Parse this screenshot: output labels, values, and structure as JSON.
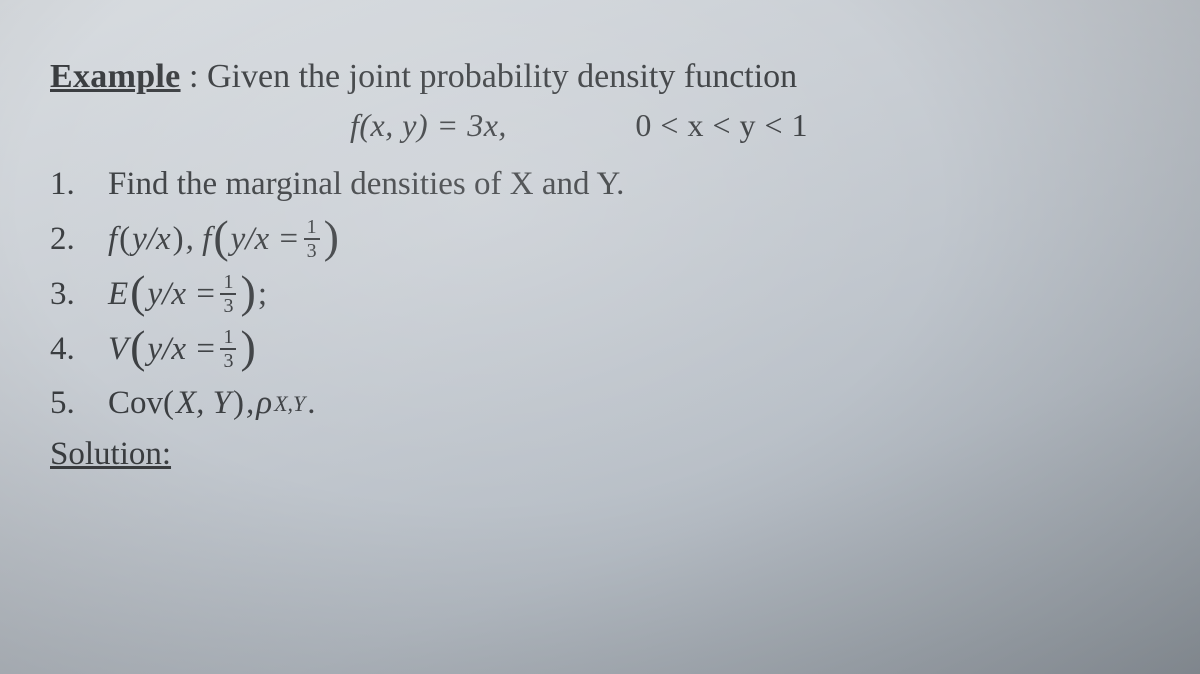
{
  "colors": {
    "text": "#3a3d40",
    "bg_top": "#d8dce0",
    "bg_bottom": "#9ba3ab"
  },
  "typography": {
    "family": "Georgia / Times serif",
    "base_size_pt": 24,
    "header_size_pt": 25,
    "frac_size_pt": 15
  },
  "header": {
    "example_label": "Example",
    "example_suffix": " :",
    "prompt": "Given the joint probability density function",
    "density": "f(x, y) = 3x,",
    "condition": "0 < x < y < 1"
  },
  "items": [
    {
      "num": "1.",
      "text_plain": "Find the marginal densities of X and Y."
    },
    {
      "num": "2.",
      "math": "f(y/x), f ( y/x = 1/3 )"
    },
    {
      "num": "3.",
      "math": "E ( y/x = 1/3 ) ;"
    },
    {
      "num": "4.",
      "math": "V ( y/x = 1/3 )"
    },
    {
      "num": "5.",
      "math": "Cov(X, Y), ρ_X,Y ."
    }
  ],
  "fraction": {
    "numerator": "1",
    "denominator": "3"
  },
  "solution_label": "Solution:"
}
